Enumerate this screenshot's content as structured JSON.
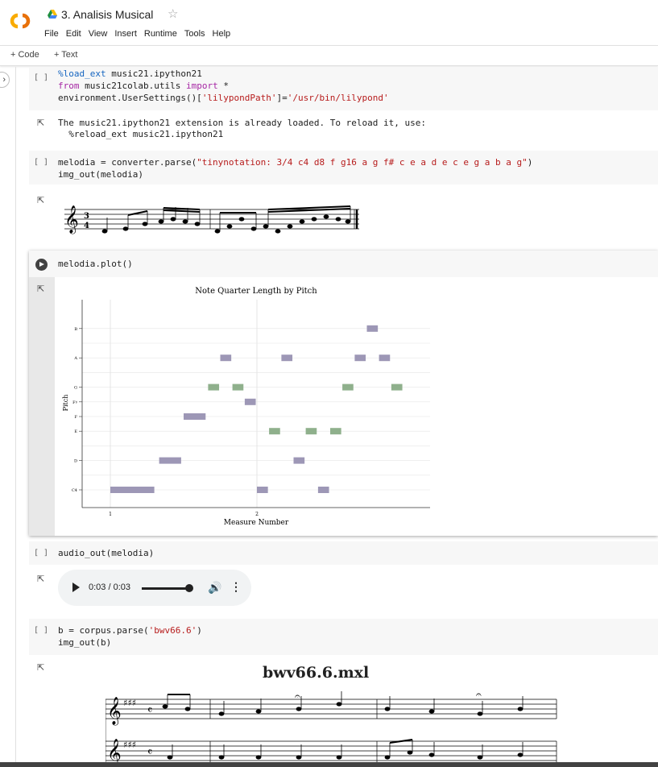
{
  "header": {
    "title": "3. Analisis Musical",
    "menu": [
      "File",
      "Edit",
      "View",
      "Insert",
      "Runtime",
      "Tools",
      "Help"
    ],
    "star_icon": "star-outline-icon"
  },
  "toolbar": {
    "code_label": "+ Code",
    "text_label": "+ Text"
  },
  "cells": {
    "c1": {
      "bracket": "[ ]",
      "line1_magic": "%load_ext",
      "line1_rest": " music21.ipython21",
      "line2_kw1": "from",
      "line2_mid": " music21colab.utils ",
      "line2_kw2": "import",
      "line2_end": " *",
      "line3_a": "environment.UserSettings()[",
      "line3_s1": "'lilypondPath'",
      "line3_b": "]=",
      "line3_s2": "'/usr/bin/lilypond'",
      "out1": "The music21.ipython21 extension is already loaded. To reload it, use:",
      "out2": "  %reload_ext music21.ipython21"
    },
    "c2": {
      "bracket": "[ ]",
      "line1_a": "melodia = converter.parse(",
      "line1_s": "\"tinynotation: 3/4 c4 d8 f g16 a g f# c e a d e c e g a b a g\"",
      "line1_b": ")",
      "line2": "img_out(melodia)"
    },
    "c3": {
      "line1": "melodia.plot()"
    },
    "c4": {
      "bracket": "[ ]",
      "line1": "audio_out(melodia)"
    },
    "c5": {
      "bracket": "[ ]",
      "line1_a": "b = corpus.parse(",
      "line1_s": "'bwv66.6'",
      "line1_b": ")",
      "line2": "img_out(b)",
      "score_title": "bwv66.6.mxl"
    }
  },
  "audio": {
    "time": "0:03 / 0:03",
    "progress": 1.0
  },
  "chart_data": {
    "type": "scatter",
    "title": "Note Quarter Length by Pitch",
    "xlabel": "Measure Number",
    "ylabel": "Pitch",
    "x_ticks": [
      "1",
      "2"
    ],
    "y_ticks": [
      "C4",
      "D",
      "E",
      "F",
      "F♯",
      "G",
      "A",
      "B"
    ],
    "colors": {
      "natural": "#9d97b6",
      "third": "#8fb08c"
    },
    "notes": [
      {
        "pitch": "C4",
        "start": 1.0,
        "dur": 1.0,
        "color": "natural"
      },
      {
        "pitch": "D",
        "start": 1.333,
        "dur": 0.5,
        "color": "natural"
      },
      {
        "pitch": "F",
        "start": 1.5,
        "dur": 0.5,
        "color": "natural"
      },
      {
        "pitch": "G",
        "start": 1.667,
        "dur": 0.25,
        "color": "third"
      },
      {
        "pitch": "A",
        "start": 1.75,
        "dur": 0.25,
        "color": "natural"
      },
      {
        "pitch": "G",
        "start": 1.833,
        "dur": 0.25,
        "color": "third"
      },
      {
        "pitch": "F♯",
        "start": 1.917,
        "dur": 0.25,
        "color": "natural"
      },
      {
        "pitch": "C4",
        "start": 2.0,
        "dur": 0.25,
        "color": "natural"
      },
      {
        "pitch": "E",
        "start": 2.083,
        "dur": 0.25,
        "color": "third"
      },
      {
        "pitch": "A",
        "start": 2.167,
        "dur": 0.25,
        "color": "natural"
      },
      {
        "pitch": "D",
        "start": 2.25,
        "dur": 0.25,
        "color": "natural"
      },
      {
        "pitch": "E",
        "start": 2.333,
        "dur": 0.25,
        "color": "third"
      },
      {
        "pitch": "C4",
        "start": 2.417,
        "dur": 0.25,
        "color": "natural"
      },
      {
        "pitch": "E",
        "start": 2.5,
        "dur": 0.25,
        "color": "third"
      },
      {
        "pitch": "G",
        "start": 2.583,
        "dur": 0.25,
        "color": "third"
      },
      {
        "pitch": "A",
        "start": 2.667,
        "dur": 0.25,
        "color": "natural"
      },
      {
        "pitch": "B",
        "start": 2.75,
        "dur": 0.25,
        "color": "natural"
      },
      {
        "pitch": "A",
        "start": 2.833,
        "dur": 0.25,
        "color": "natural"
      },
      {
        "pitch": "G",
        "start": 2.917,
        "dur": 0.25,
        "color": "third"
      }
    ]
  }
}
